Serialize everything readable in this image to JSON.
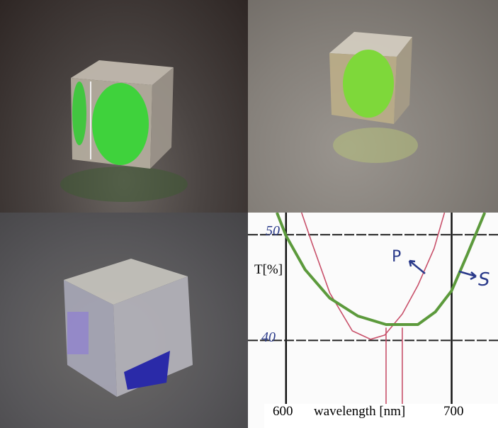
{
  "panels": [
    {
      "subject": "glass cube beamsplitter on dark surface, green reflection"
    },
    {
      "subject": "glass cube beamsplitter on grey surface, green reflection"
    },
    {
      "subject": "glass cube beamsplitter on grey surface, violet-blue reflection"
    }
  ],
  "chart_data": {
    "type": "line",
    "xlabel": "wavelength [nm]",
    "ylabel": "T[%]",
    "x_ticks": [
      "600",
      "700"
    ],
    "y_ticks": [
      "50",
      "40"
    ],
    "xlim": [
      577,
      728
    ],
    "ylim": [
      31.7,
      52.1
    ],
    "grid": true,
    "series": [
      {
        "name": "P",
        "color": "#c8506a",
        "x": [
          609.4,
          615.7,
          626.4,
          640.0,
          651.1,
          659.6,
          670.2,
          679.6,
          689.4,
          695.7
        ],
        "y": [
          52.1,
          49.2,
          44.5,
          40.9,
          40.1,
          40.5,
          42.5,
          45.2,
          48.7,
          52.1
        ]
      },
      {
        "name": "S",
        "color": "#5c9a3c",
        "x": [
          594.5,
          600.0,
          611.5,
          626.4,
          643.4,
          660.4,
          679.6,
          690.2,
          700.0,
          709.4,
          720.0
        ],
        "y": [
          52.1,
          49.9,
          46.7,
          44.0,
          42.3,
          41.5,
          41.5,
          42.7,
          44.7,
          48.1,
          52.1
        ]
      }
    ],
    "markers_x": [
      660.4,
      670.2
    ],
    "annotations": {
      "p_label": "P",
      "s_label": "S",
      "y50": "50",
      "y40": "40"
    }
  }
}
